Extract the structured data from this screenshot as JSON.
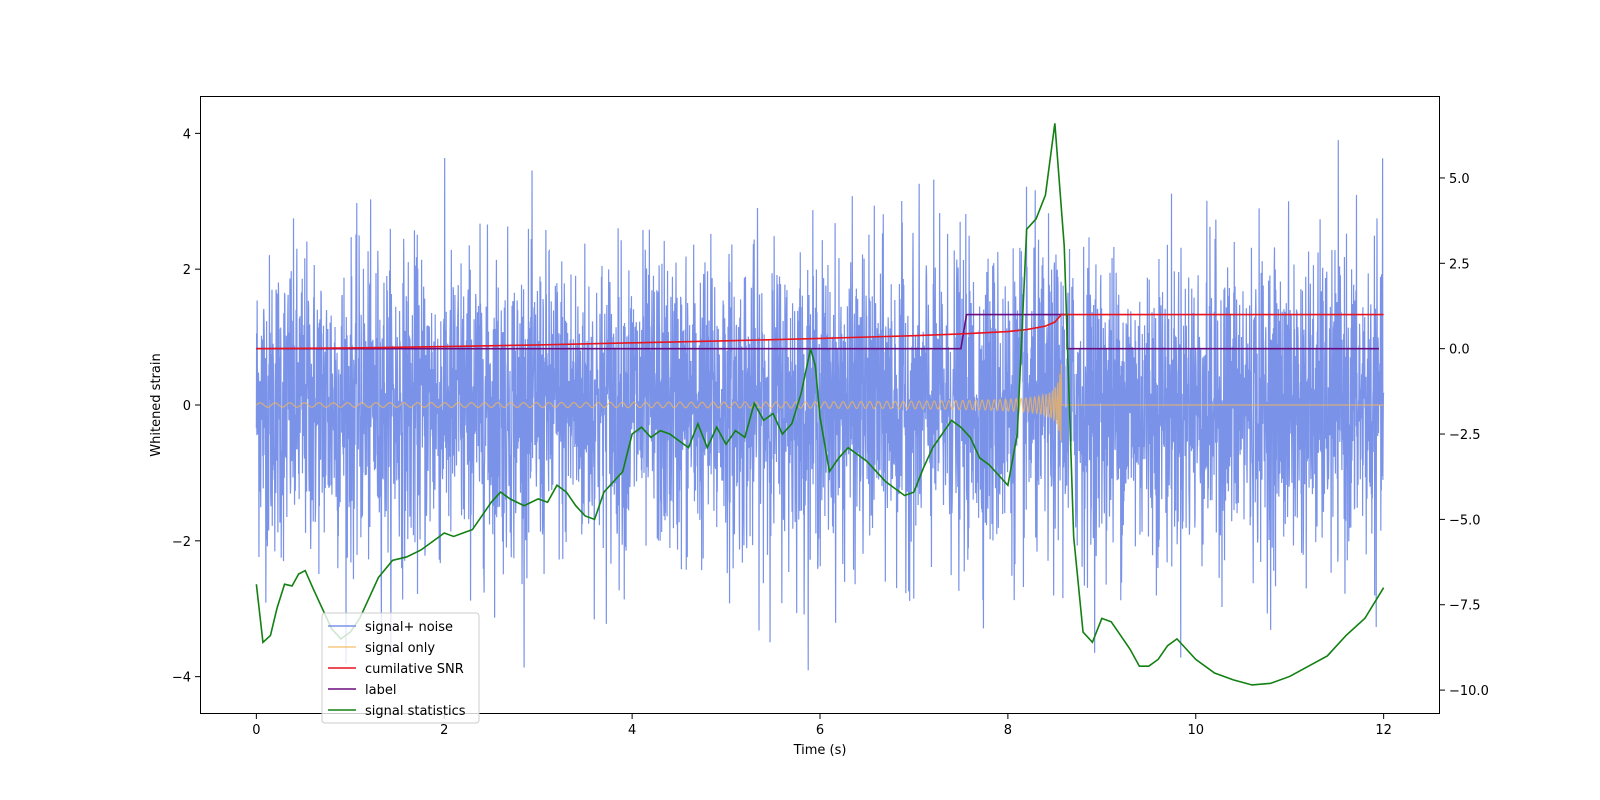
{
  "chart_data": {
    "type": "line",
    "title": "",
    "xlabel": "Time (s)",
    "ylabel": "Whitened strain",
    "y2label": "",
    "xlim": [
      -0.6,
      12.6
    ],
    "ylim": [
      -4.55,
      4.55
    ],
    "y2lim": [
      -10.7,
      7.4
    ],
    "xticks": [
      "0",
      "2",
      "4",
      "6",
      "8",
      "10",
      "12"
    ],
    "yticks": [
      "-4",
      "-2",
      "0",
      "2",
      "4"
    ],
    "y2ticks": [
      "-10.0",
      "-7.5",
      "-5.0",
      "-2.5",
      "0.0",
      "2.5",
      "5.0"
    ],
    "legend_position": "lower-left",
    "colors": {
      "signal_noise": "#6b87e6",
      "signal_only": "#f5b65a",
      "cumulative_snr": "#e8141e",
      "label": "#6a0b7e",
      "signal_statistics": "#138013"
    },
    "series": [
      {
        "name": "signal+ noise",
        "axis": "left",
        "description": "whitened strain samples, approximately gaussian noise with sigma ~1.1 over 0-12 s",
        "x_range": [
          0,
          12
        ],
        "sigma": 1.1
      },
      {
        "name": "signal only",
        "axis": "left",
        "description": "chirp waveform, small amplitude growing to ~1.4 at merger near 8.57 s, zero afterwards",
        "merger_time": 8.57,
        "peak_amplitude": 1.4
      },
      {
        "name": "cumilative SNR",
        "axis": "right",
        "x": [
          0,
          1,
          2,
          3,
          4,
          5,
          6,
          7,
          7.5,
          8,
          8.2,
          8.4,
          8.5,
          8.57,
          8.6,
          12
        ],
        "values": [
          0.0,
          0.02,
          0.06,
          0.11,
          0.17,
          0.23,
          0.3,
          0.38,
          0.43,
          0.5,
          0.56,
          0.66,
          0.78,
          1.0,
          1.0,
          1.0
        ]
      },
      {
        "name": "label",
        "axis": "right",
        "x": [
          0,
          7.5,
          7.56,
          8.63,
          8.63,
          11.95
        ],
        "values": [
          0,
          0,
          1,
          1,
          0,
          0
        ]
      },
      {
        "name": "signal statistics",
        "axis": "right",
        "x": [
          0,
          0.07,
          0.15,
          0.22,
          0.3,
          0.38,
          0.45,
          0.52,
          0.6,
          0.7,
          0.8,
          0.9,
          1.0,
          1.1,
          1.2,
          1.3,
          1.45,
          1.6,
          1.75,
          1.9,
          2.0,
          2.1,
          2.2,
          2.3,
          2.4,
          2.5,
          2.6,
          2.7,
          2.85,
          3.0,
          3.1,
          3.2,
          3.3,
          3.4,
          3.5,
          3.6,
          3.7,
          3.8,
          3.9,
          4.0,
          4.1,
          4.2,
          4.3,
          4.4,
          4.5,
          4.6,
          4.7,
          4.8,
          4.9,
          5.0,
          5.1,
          5.2,
          5.3,
          5.4,
          5.5,
          5.6,
          5.7,
          5.8,
          5.9,
          5.95,
          6.0,
          6.1,
          6.2,
          6.3,
          6.4,
          6.5,
          6.6,
          6.7,
          6.8,
          6.9,
          7.0,
          7.1,
          7.2,
          7.3,
          7.4,
          7.5,
          7.6,
          7.7,
          7.8,
          7.9,
          8.0,
          8.1,
          8.2,
          8.3,
          8.4,
          8.5,
          8.6,
          8.7,
          8.8,
          8.9,
          9.0,
          9.1,
          9.2,
          9.3,
          9.4,
          9.5,
          9.6,
          9.7,
          9.8,
          9.9,
          10.0,
          10.2,
          10.4,
          10.6,
          10.8,
          11.0,
          11.2,
          11.4,
          11.6,
          11.8,
          12.0
        ],
        "values": [
          -6.9,
          -8.6,
          -8.4,
          -7.6,
          -6.9,
          -6.95,
          -6.6,
          -6.5,
          -7.0,
          -7.6,
          -8.2,
          -8.5,
          -8.3,
          -7.9,
          -7.3,
          -6.7,
          -6.2,
          -6.1,
          -5.9,
          -5.6,
          -5.4,
          -5.5,
          -5.4,
          -5.3,
          -4.9,
          -4.5,
          -4.2,
          -4.4,
          -4.6,
          -4.4,
          -4.5,
          -4.0,
          -4.2,
          -4.6,
          -4.9,
          -5.0,
          -4.2,
          -3.9,
          -3.6,
          -2.5,
          -2.3,
          -2.6,
          -2.4,
          -2.5,
          -2.7,
          -2.9,
          -2.2,
          -2.9,
          -2.3,
          -2.8,
          -2.4,
          -2.6,
          -1.6,
          -2.1,
          -1.9,
          -2.5,
          -2.2,
          -1.3,
          0.0,
          -0.5,
          -2.0,
          -3.6,
          -3.2,
          -2.9,
          -3.1,
          -3.3,
          -3.6,
          -3.9,
          -4.1,
          -4.3,
          -4.2,
          -3.5,
          -2.9,
          -2.5,
          -2.1,
          -2.3,
          -2.6,
          -3.2,
          -3.4,
          -3.7,
          -4.0,
          -2.5,
          3.5,
          3.8,
          4.5,
          6.6,
          3.0,
          -5.5,
          -8.3,
          -8.6,
          -7.9,
          -8.0,
          -8.4,
          -8.8,
          -9.3,
          -9.3,
          -9.1,
          -8.7,
          -8.5,
          -8.8,
          -9.1,
          -9.5,
          -9.7,
          -9.85,
          -9.8,
          -9.6,
          -9.3,
          -9.0,
          -8.4,
          -7.9,
          -7.0
        ]
      }
    ]
  }
}
